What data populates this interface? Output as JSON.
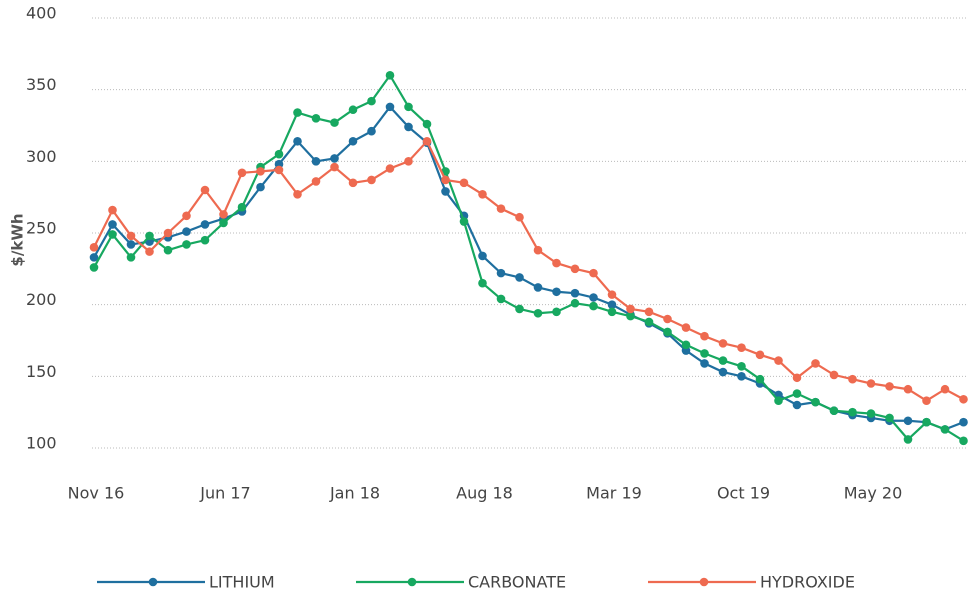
{
  "chart_data": {
    "type": "line",
    "ylabel": "$/kWh",
    "categories": [
      "Nov 16",
      null,
      null,
      null,
      null,
      null,
      null,
      "Jun 17",
      null,
      null,
      null,
      null,
      null,
      null,
      "Jan 18",
      null,
      null,
      null,
      null,
      null,
      null,
      "Aug 18",
      null,
      null,
      null,
      null,
      null,
      null,
      "Mar 19",
      null,
      null,
      null,
      null,
      null,
      null,
      "Oct 19",
      null,
      null,
      null,
      null,
      null,
      null,
      "May 20",
      null,
      null,
      null,
      null,
      null
    ],
    "series": [
      {
        "name": "LITHIUM",
        "color": "#1f6f9f",
        "values": [
          233,
          256,
          242,
          244,
          247,
          251,
          256,
          260,
          265,
          282,
          298,
          314,
          300,
          302,
          314,
          321,
          338,
          324,
          313,
          279,
          262,
          234,
          222,
          219,
          212,
          209,
          208,
          205,
          200,
          193,
          187,
          180,
          168,
          159,
          153,
          150,
          145,
          137,
          130,
          132,
          126,
          123,
          121,
          119,
          119,
          118,
          113,
          118
        ]
      },
      {
        "name": "CARBONATE",
        "color": "#17a860",
        "values": [
          226,
          249,
          233,
          248,
          238,
          242,
          245,
          257,
          268,
          296,
          305,
          334,
          330,
          327,
          336,
          342,
          360,
          338,
          326,
          293,
          258,
          215,
          204,
          197,
          194,
          195,
          201,
          199,
          195,
          192,
          188,
          181,
          172,
          166,
          161,
          157,
          148,
          133,
          138,
          132,
          126,
          125,
          124,
          121,
          106,
          118,
          113,
          105
        ]
      },
      {
        "name": "HYDROXIDE",
        "color": "#ee6a50",
        "values": [
          240,
          266,
          248,
          237,
          250,
          262,
          280,
          263,
          292,
          293,
          294,
          277,
          286,
          296,
          285,
          287,
          295,
          300,
          314,
          287,
          285,
          277,
          267,
          261,
          238,
          229,
          225,
          222,
          207,
          197,
          195,
          190,
          184,
          178,
          173,
          170,
          165,
          161,
          149,
          159,
          151,
          148,
          145,
          143,
          141,
          133,
          141,
          134
        ]
      }
    ],
    "ylim": [
      100,
      400
    ],
    "yticks": [
      100,
      150,
      200,
      250,
      300,
      350,
      400
    ],
    "grid": true,
    "legend": "bottom"
  }
}
